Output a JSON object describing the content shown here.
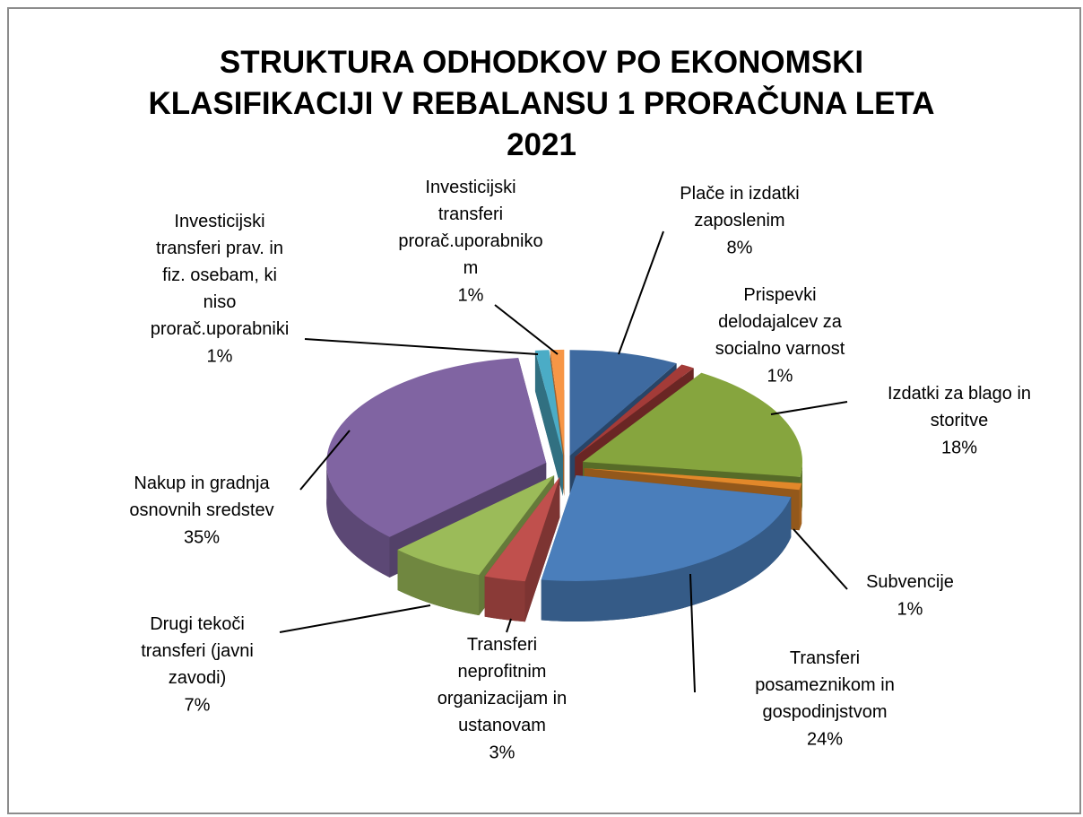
{
  "chart_data": {
    "type": "pie",
    "title": "STRUKTURA ODHODKOV PO EKONOMSKI KLASIFIKACIJI V REBALANSU 1 PRORAČUNA LETA 2021",
    "categories": [
      "Plače in izdatki zaposlenim",
      "Prispevki delodajalcev za socialno varnost",
      "Izdatki za blago in storitve",
      "Subvencije",
      "Transferi posameznikom in gospodinjstvom",
      "Transferi neprofitnim organizacijam in ustanovam",
      "Drugi tekoči transferi (javni zavodi)",
      "Nakup in gradnja osnovnih sredstev",
      "Investicijski transferi prav. in fiz. osebam, ki niso prorač.uporabniki",
      "Investicijski transferi prorač.uporabnikom"
    ],
    "values": [
      8,
      1,
      18,
      1,
      24,
      3,
      7,
      35,
      1,
      1
    ],
    "value_labels": [
      "8%",
      "1%",
      "18%",
      "1%",
      "24%",
      "3%",
      "7%",
      "35%",
      "1%",
      "1%"
    ],
    "colors": [
      "#3e6aa0",
      "#a33b38",
      "#86a53e",
      "#e2882a",
      "#4a7ebb",
      "#c0504d",
      "#9bbb59",
      "#8064a2",
      "#4bacc6",
      "#f79646"
    ]
  }
}
